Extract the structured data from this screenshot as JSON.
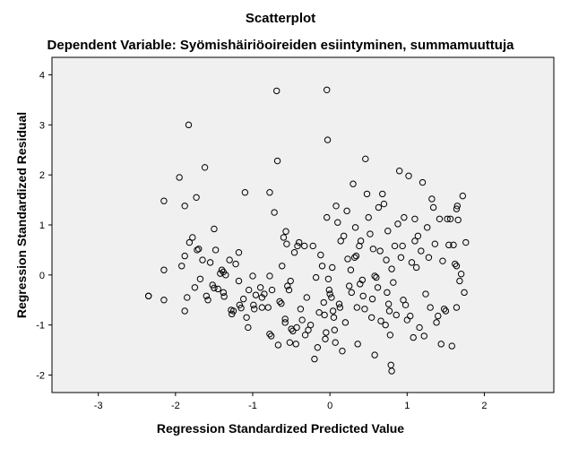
{
  "chart_data": {
    "type": "scatter",
    "title": "Scatterplot",
    "subtitle": "Dependent Variable: Syömishäiriöoireiden esiintyminen, summamuuttuja",
    "xlabel": "Regression Standardized Predicted Value",
    "ylabel": "Regression Standardized Residual",
    "xlim": [
      -3.6,
      2.9
    ],
    "ylim": [
      -2.35,
      4.35
    ],
    "xticks": [
      "-3",
      "-2",
      "-1",
      "0",
      "1",
      "2"
    ],
    "yticks": [
      "-2",
      "-1",
      "0",
      "1",
      "2",
      "3",
      "4"
    ],
    "grid": false,
    "colors": {
      "plot_bg": "#f0f0f0",
      "marker": "#000000"
    },
    "points": [
      [
        -2.35,
        -0.42
      ],
      [
        -2.35,
        -0.42
      ],
      [
        -2.15,
        1.48
      ],
      [
        -2.15,
        0.1
      ],
      [
        -2.15,
        -0.5
      ],
      [
        -1.95,
        1.95
      ],
      [
        -1.92,
        0.18
      ],
      [
        -1.88,
        1.38
      ],
      [
        -1.88,
        0.38
      ],
      [
        -1.88,
        -0.72
      ],
      [
        -1.85,
        -0.45
      ],
      [
        -1.83,
        3.0
      ],
      [
        -1.82,
        0.65
      ],
      [
        -1.78,
        0.75
      ],
      [
        -1.75,
        -0.25
      ],
      [
        -1.73,
        1.55
      ],
      [
        -1.72,
        0.5
      ],
      [
        -1.7,
        0.52
      ],
      [
        -1.68,
        -0.08
      ],
      [
        -1.65,
        0.3
      ],
      [
        -1.62,
        2.15
      ],
      [
        -1.6,
        -0.42
      ],
      [
        -1.58,
        -0.5
      ],
      [
        -1.55,
        0.25
      ],
      [
        -1.52,
        -0.2
      ],
      [
        -1.5,
        -0.26
      ],
      [
        -1.5,
        0.92
      ],
      [
        -1.48,
        0.5
      ],
      [
        -1.45,
        -0.28
      ],
      [
        -1.42,
        0.03
      ],
      [
        -1.4,
        0.1
      ],
      [
        -1.38,
        0.06
      ],
      [
        -1.38,
        -0.35
      ],
      [
        -1.37,
        -0.43
      ],
      [
        -1.35,
        0.0
      ],
      [
        -1.3,
        0.3
      ],
      [
        -1.28,
        -0.7
      ],
      [
        -1.27,
        -0.78
      ],
      [
        -1.25,
        -0.72
      ],
      [
        -1.22,
        0.22
      ],
      [
        -1.18,
        -0.12
      ],
      [
        -1.18,
        0.45
      ],
      [
        -1.17,
        -0.6
      ],
      [
        -1.15,
        -0.66
      ],
      [
        -1.12,
        -0.48
      ],
      [
        -1.1,
        1.65
      ],
      [
        -1.08,
        -0.85
      ],
      [
        -1.06,
        -1.05
      ],
      [
        -1.05,
        -0.3
      ],
      [
        -1.0,
        -0.02
      ],
      [
        -0.99,
        -0.6
      ],
      [
        -0.98,
        -0.68
      ],
      [
        -0.96,
        -0.4
      ],
      [
        -0.9,
        -0.25
      ],
      [
        -0.88,
        -0.45
      ],
      [
        -0.88,
        -0.65
      ],
      [
        -0.85,
        -0.38
      ],
      [
        -0.8,
        -0.65
      ],
      [
        -0.78,
        1.65
      ],
      [
        -0.78,
        -1.18
      ],
      [
        -0.78,
        -0.02
      ],
      [
        -0.76,
        -1.22
      ],
      [
        -0.75,
        -0.3
      ],
      [
        -0.72,
        1.25
      ],
      [
        -0.69,
        3.68
      ],
      [
        -0.68,
        2.28
      ],
      [
        -0.67,
        -1.4
      ],
      [
        -0.65,
        -0.53
      ],
      [
        -0.63,
        -0.57
      ],
      [
        -0.62,
        0.18
      ],
      [
        -0.6,
        0.75
      ],
      [
        -0.58,
        -0.95
      ],
      [
        -0.58,
        -0.88
      ],
      [
        -0.57,
        0.87
      ],
      [
        -0.56,
        0.62
      ],
      [
        -0.55,
        -0.22
      ],
      [
        -0.53,
        -0.3
      ],
      [
        -0.52,
        -1.35
      ],
      [
        -0.51,
        -0.12
      ],
      [
        -0.5,
        -1.08
      ],
      [
        -0.48,
        -1.12
      ],
      [
        -0.46,
        0.45
      ],
      [
        -0.44,
        -1.38
      ],
      [
        -0.43,
        -1.05
      ],
      [
        -0.42,
        0.58
      ],
      [
        -0.4,
        0.65
      ],
      [
        -0.38,
        -0.68
      ],
      [
        -0.36,
        -0.9
      ],
      [
        -0.33,
        0.58
      ],
      [
        -0.32,
        -1.2
      ],
      [
        -0.28,
        -1.1
      ],
      [
        -0.25,
        -1.0
      ],
      [
        -0.22,
        0.58
      ],
      [
        -0.2,
        -1.68
      ],
      [
        -0.18,
        -0.05
      ],
      [
        -0.16,
        -1.45
      ],
      [
        -0.14,
        -0.75
      ],
      [
        -0.12,
        0.4
      ],
      [
        -0.1,
        0.18
      ],
      [
        -0.08,
        -0.55
      ],
      [
        -0.07,
        -0.8
      ],
      [
        -0.06,
        -1.28
      ],
      [
        -0.05,
        -1.15
      ],
      [
        -0.04,
        1.15
      ],
      [
        -0.04,
        3.7
      ],
      [
        -0.03,
        2.7
      ],
      [
        -0.02,
        -0.08
      ],
      [
        -0.01,
        -0.3
      ],
      [
        0.0,
        -0.38
      ],
      [
        0.02,
        -0.45
      ],
      [
        0.03,
        0.15
      ],
      [
        0.04,
        -0.72
      ],
      [
        0.05,
        -0.85
      ],
      [
        0.06,
        -1.1
      ],
      [
        0.07,
        -1.35
      ],
      [
        0.08,
        1.38
      ],
      [
        0.1,
        1.05
      ],
      [
        0.12,
        -0.58
      ],
      [
        0.13,
        -0.65
      ],
      [
        0.14,
        0.68
      ],
      [
        0.16,
        -1.52
      ],
      [
        0.18,
        0.78
      ],
      [
        0.2,
        -0.95
      ],
      [
        0.22,
        1.28
      ],
      [
        0.23,
        0.32
      ],
      [
        0.25,
        -0.22
      ],
      [
        0.27,
        0.1
      ],
      [
        0.28,
        -0.35
      ],
      [
        0.3,
        1.82
      ],
      [
        0.32,
        0.35
      ],
      [
        0.33,
        0.95
      ],
      [
        0.35,
        -0.65
      ],
      [
        0.36,
        -1.38
      ],
      [
        0.38,
        0.58
      ],
      [
        0.39,
        -0.18
      ],
      [
        0.4,
        0.68
      ],
      [
        0.42,
        -0.1
      ],
      [
        0.43,
        -0.42
      ],
      [
        0.45,
        -0.68
      ],
      [
        0.46,
        2.32
      ],
      [
        0.48,
        1.62
      ],
      [
        0.5,
        1.15
      ],
      [
        0.52,
        0.82
      ],
      [
        0.54,
        -0.85
      ],
      [
        0.55,
        -0.48
      ],
      [
        0.56,
        0.52
      ],
      [
        0.58,
        -1.6
      ],
      [
        0.6,
        -0.05
      ],
      [
        0.62,
        -0.25
      ],
      [
        0.63,
        1.35
      ],
      [
        0.65,
        0.48
      ],
      [
        0.66,
        -0.92
      ],
      [
        0.68,
        1.62
      ],
      [
        0.7,
        1.42
      ],
      [
        0.72,
        -1.0
      ],
      [
        0.73,
        0.3
      ],
      [
        0.74,
        -0.35
      ],
      [
        0.75,
        0.88
      ],
      [
        0.76,
        -0.58
      ],
      [
        0.77,
        -0.72
      ],
      [
        0.78,
        -1.2
      ],
      [
        0.79,
        -1.8
      ],
      [
        0.8,
        -1.92
      ],
      [
        0.8,
        0.12
      ],
      [
        0.82,
        -0.15
      ],
      [
        0.84,
        0.58
      ],
      [
        0.86,
        -0.8
      ],
      [
        0.88,
        1.02
      ],
      [
        0.9,
        2.08
      ],
      [
        0.92,
        0.35
      ],
      [
        0.94,
        0.58
      ],
      [
        0.95,
        -0.5
      ],
      [
        0.96,
        1.15
      ],
      [
        0.98,
        -0.6
      ],
      [
        1.0,
        -0.9
      ],
      [
        1.02,
        1.98
      ],
      [
        1.04,
        -0.82
      ],
      [
        1.06,
        0.25
      ],
      [
        1.08,
        -1.25
      ],
      [
        1.1,
        1.12
      ],
      [
        1.12,
        0.15
      ],
      [
        1.14,
        0.78
      ],
      [
        1.16,
        -1.05
      ],
      [
        1.18,
        0.48
      ],
      [
        1.2,
        1.85
      ],
      [
        1.22,
        -1.22
      ],
      [
        1.24,
        -0.38
      ],
      [
        1.26,
        0.95
      ],
      [
        1.28,
        0.35
      ],
      [
        1.3,
        -0.65
      ],
      [
        1.32,
        1.52
      ],
      [
        1.34,
        1.35
      ],
      [
        1.36,
        0.62
      ],
      [
        1.38,
        -0.95
      ],
      [
        1.4,
        -0.82
      ],
      [
        1.42,
        1.12
      ],
      [
        1.44,
        -1.38
      ],
      [
        1.46,
        0.28
      ],
      [
        1.48,
        -0.68
      ],
      [
        1.5,
        -0.72
      ],
      [
        1.52,
        1.12
      ],
      [
        1.54,
        0.6
      ],
      [
        1.56,
        1.12
      ],
      [
        1.58,
        -1.42
      ],
      [
        1.6,
        0.6
      ],
      [
        1.62,
        0.22
      ],
      [
        1.64,
        1.32
      ],
      [
        1.64,
        0.18
      ],
      [
        1.64,
        -0.65
      ],
      [
        1.65,
        1.38
      ],
      [
        1.66,
        1.1
      ],
      [
        1.68,
        -0.12
      ],
      [
        1.7,
        0.02
      ],
      [
        1.72,
        1.58
      ],
      [
        1.74,
        -0.35
      ],
      [
        1.76,
        0.65
      ],
      [
        1.1,
        0.68
      ],
      [
        0.34,
        0.38
      ],
      [
        -0.3,
        -0.45
      ],
      [
        0.58,
        -0.02
      ]
    ]
  }
}
